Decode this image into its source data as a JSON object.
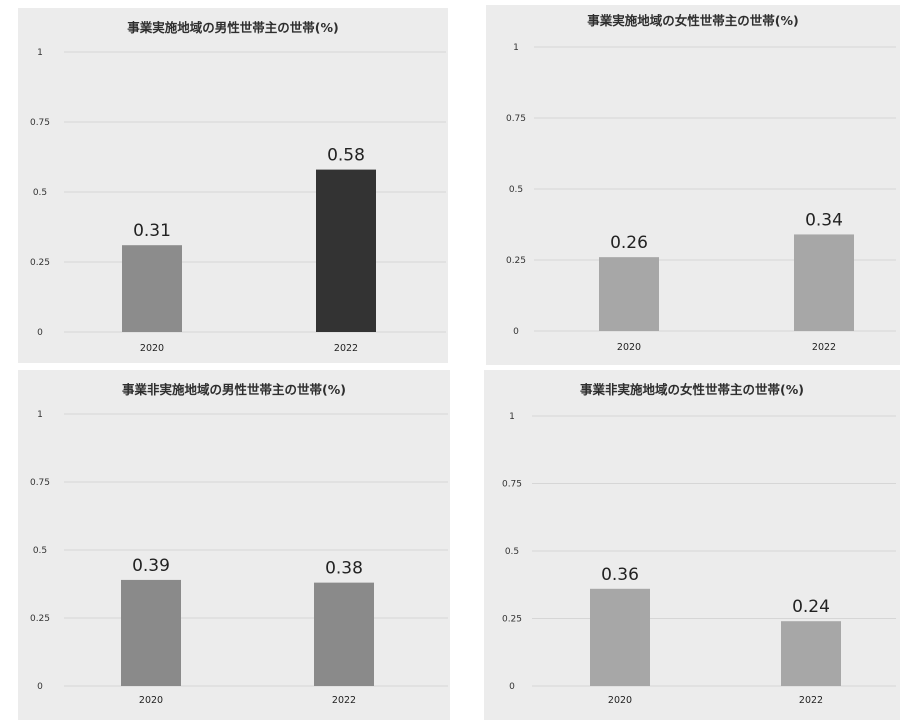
{
  "chart_data": [
    {
      "type": "bar",
      "title": "事業実施地域の男性世帯主の世帯(%)",
      "categories": [
        "2020",
        "2022"
      ],
      "values": [
        0.31,
        0.58
      ],
      "value_labels": [
        "0.31",
        "0.58"
      ],
      "bar_colors": [
        "#8c8c8c",
        "#333333"
      ],
      "yticks": [
        "0",
        "0.25",
        "0.5",
        "0.75",
        "1"
      ],
      "ylim": [
        0,
        1
      ],
      "grid": true
    },
    {
      "type": "bar",
      "title": "事業実施地域の女性世帯主の世帯(%)",
      "categories": [
        "2020",
        "2022"
      ],
      "values": [
        0.26,
        0.34
      ],
      "value_labels": [
        "0.26",
        "0.34"
      ],
      "bar_colors": [
        "#a7a7a7",
        "#a7a7a7"
      ],
      "yticks": [
        "0",
        "0.25",
        "0.5",
        "0.75",
        "1"
      ],
      "ylim": [
        0,
        1
      ],
      "grid": true
    },
    {
      "type": "bar",
      "title": "事業非実施地域の男性世帯主の世帯(%)",
      "categories": [
        "2020",
        "2022"
      ],
      "values": [
        0.39,
        0.38
      ],
      "value_labels": [
        "0.39",
        "0.38"
      ],
      "bar_colors": [
        "#8a8a8a",
        "#8a8a8a"
      ],
      "yticks": [
        "0",
        "0.25",
        "0.5",
        "0.75",
        "1"
      ],
      "ylim": [
        0,
        1
      ],
      "grid": true
    },
    {
      "type": "bar",
      "title": "事業非実施地域の女性世帯主の世帯(%)",
      "categories": [
        "2020",
        "2022"
      ],
      "values": [
        0.36,
        0.24
      ],
      "value_labels": [
        "0.36",
        "0.24"
      ],
      "bar_colors": [
        "#a7a7a7",
        "#a7a7a7"
      ],
      "yticks": [
        "0",
        "0.25",
        "0.5",
        "0.75",
        "1"
      ],
      "ylim": [
        0,
        1
      ],
      "grid": true
    }
  ]
}
